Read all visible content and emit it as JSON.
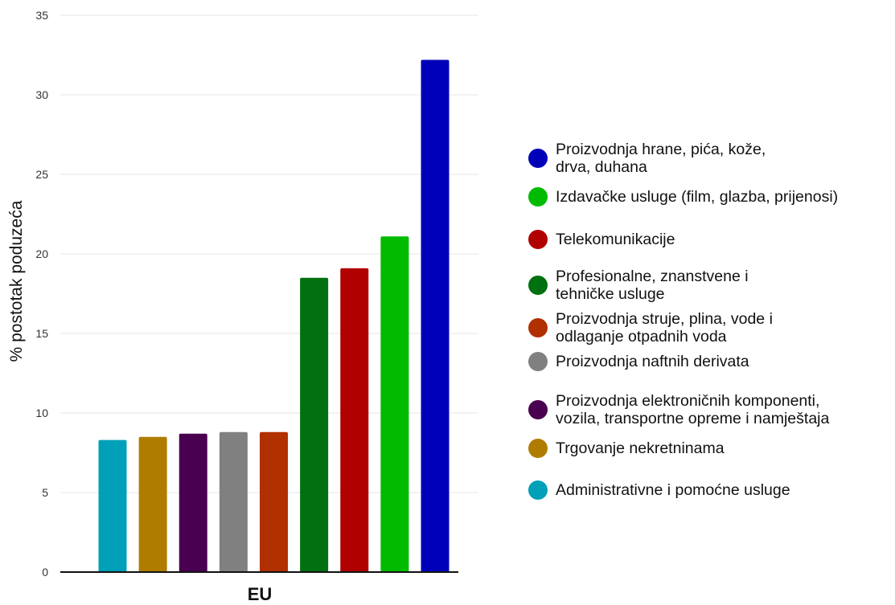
{
  "chart_data": {
    "type": "bar",
    "title": "",
    "xlabel": "EU",
    "ylabel": "% postotak poduzeća",
    "ylim": [
      0,
      35
    ],
    "yticks": [
      "0",
      "5",
      "10",
      "15",
      "20",
      "25",
      "30",
      "35"
    ],
    "grid": true,
    "legend_position": "right",
    "series": [
      {
        "name": "Administrativne i pomoćne usluge",
        "value": 8.3,
        "color": "#00A0B8"
      },
      {
        "name": "Trgovanje nekretninama",
        "value": 8.5,
        "color": "#B07C00"
      },
      {
        "name": "Proizvodnja elektroničnih komponenti, vozila, transportne opreme i namještaja",
        "value": 8.7,
        "color": "#4A0050"
      },
      {
        "name": "Proizvodnja naftnih derivata",
        "value": 8.8,
        "color": "#808080"
      },
      {
        "name": "Proizvodnja struje, plina, vode i odlaganje otpadnih voda",
        "value": 8.8,
        "color": "#B03000"
      },
      {
        "name": "Profesionalne, znanstvene i tehničke usluge",
        "value": 18.5,
        "color": "#007010"
      },
      {
        "name": "Telekomunikacije",
        "value": 19.1,
        "color": "#B00000"
      },
      {
        "name": "Izdavačke usluge (film, glazba, prijenosi)",
        "value": 21.1,
        "color": "#00BB00"
      },
      {
        "name": "Proizvodnja hrane, pića, kože, drva, duhana",
        "value": 32.2,
        "color": "#0000B8"
      }
    ]
  },
  "legend": {
    "items": [
      {
        "label": "Proizvodnja hrane, pića, kože,\ndrva, duhana",
        "color": "#0000B8"
      },
      {
        "label": "Izdavačke usluge (film, glazba, prijenosi)",
        "color": "#00BB00"
      },
      {
        "label": "Telekomunikacije",
        "color": "#B00000"
      },
      {
        "label": "Profesionalne, znanstvene i\ntehničke usluge",
        "color": "#007010"
      },
      {
        "label": "Proizvodnja struje, plina, vode i\nodlaganje otpadnih voda",
        "color": "#B03000"
      },
      {
        "label": "Proizvodnja naftnih derivata",
        "color": "#808080"
      },
      {
        "label": "Proizvodnja elektroničnih komponenti,\nvozila, transportne opreme i namještaja",
        "color": "#4A0050"
      },
      {
        "label": "Trgovanje nekretninama",
        "color": "#B07C00"
      },
      {
        "label": "Administrativne i pomoćne usluge",
        "color": "#00A0B8"
      }
    ]
  }
}
